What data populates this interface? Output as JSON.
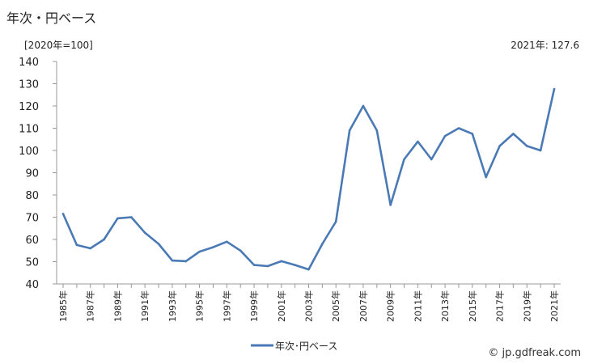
{
  "title": "年次・円ベース",
  "unit_label": "[2020年=100]",
  "latest_label": "2021年: 127.6",
  "credit": "© jp.gdfreak.com",
  "colors": {
    "series": "#4a7ab5",
    "axis": "#999999",
    "text": "#222222"
  },
  "chart_data": {
    "type": "line",
    "title": "年次・円ベース",
    "xlabel": "",
    "ylabel": "[2020年=100]",
    "ylim": [
      40,
      140
    ],
    "yticks": [
      40,
      50,
      60,
      70,
      80,
      90,
      100,
      110,
      120,
      130,
      140
    ],
    "grid": false,
    "legend": "bottom-center",
    "x": [
      1985,
      1986,
      1987,
      1988,
      1989,
      1990,
      1991,
      1992,
      1993,
      1994,
      1995,
      1996,
      1997,
      1998,
      1999,
      2000,
      2001,
      2002,
      2003,
      2004,
      2005,
      2006,
      2007,
      2008,
      2009,
      2010,
      2011,
      2012,
      2013,
      2014,
      2015,
      2016,
      2017,
      2018,
      2019,
      2020,
      2021
    ],
    "x_tick_labels": [
      "1985年",
      "1987年",
      "1989年",
      "1991年",
      "1993年",
      "1995年",
      "1997年",
      "1999年",
      "2001年",
      "2003年",
      "2005年",
      "2007年",
      "2009年",
      "2011年",
      "2013年",
      "2015年",
      "2017年",
      "2019年",
      "2021年"
    ],
    "series": [
      {
        "name": "年次･円ベース",
        "values": [
          71.5,
          57.5,
          56.0,
          60.0,
          69.5,
          70.0,
          63.0,
          58.0,
          50.5,
          50.2,
          54.5,
          56.5,
          59.0,
          55.0,
          48.5,
          48.0,
          50.2,
          48.5,
          46.5,
          58.0,
          68.0,
          109.0,
          120.0,
          109.0,
          75.5,
          96.0,
          104.0,
          96.0,
          106.5,
          110.0,
          107.5,
          88.0,
          102.0,
          107.5,
          102.0,
          100.0,
          127.6
        ]
      }
    ]
  }
}
